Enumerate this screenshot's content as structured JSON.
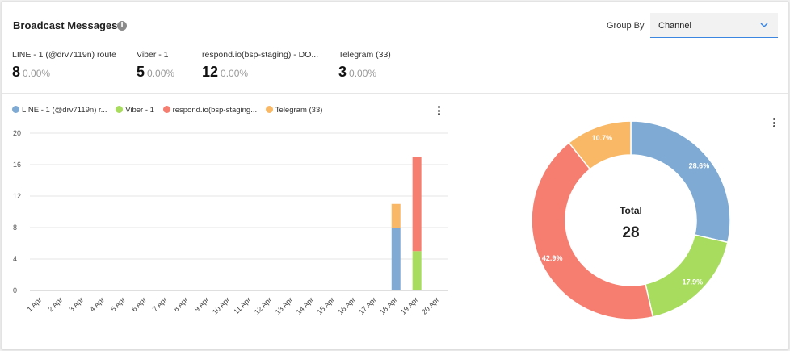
{
  "header": {
    "title": "Broadcast Messages",
    "info_icon": "i",
    "group_by_label": "Group By",
    "group_by_value": "Channel"
  },
  "stats": [
    {
      "label": "LINE - 1 (@drv7119n) route",
      "count": "8",
      "percent": "0.00%"
    },
    {
      "label": "Viber - 1",
      "count": "5",
      "percent": "0.00%"
    },
    {
      "label": "respond.io(bsp-staging) - DO...",
      "count": "12",
      "percent": "0.00%"
    },
    {
      "label": "Telegram (33)",
      "count": "3",
      "percent": "0.00%"
    }
  ],
  "legend": [
    {
      "label": "LINE - 1 (@drv7119n) r...",
      "color": "#7eaad3"
    },
    {
      "label": "Viber - 1",
      "color": "#a8dc5e"
    },
    {
      "label": "respond.io(bsp-staging...",
      "color": "#f67e70"
    },
    {
      "label": "Telegram (33)",
      "color": "#f9b865"
    }
  ],
  "chart_data": [
    {
      "type": "bar",
      "stacked": true,
      "categories": [
        "1 Apr",
        "2 Apr",
        "3 Apr",
        "4 Apr",
        "5 Apr",
        "6 Apr",
        "7 Apr",
        "8 Apr",
        "9 Apr",
        "10 Apr",
        "11 Apr",
        "12 Apr",
        "13 Apr",
        "14 Apr",
        "15 Apr",
        "16 Apr",
        "17 Apr",
        "18 Apr",
        "19 Apr",
        "20 Apr"
      ],
      "series": [
        {
          "name": "LINE - 1 (@drv7119n) route",
          "color": "#7eaad3",
          "values": [
            0,
            0,
            0,
            0,
            0,
            0,
            0,
            0,
            0,
            0,
            0,
            0,
            0,
            0,
            0,
            0,
            0,
            8,
            0,
            0
          ]
        },
        {
          "name": "Viber - 1",
          "color": "#a8dc5e",
          "values": [
            0,
            0,
            0,
            0,
            0,
            0,
            0,
            0,
            0,
            0,
            0,
            0,
            0,
            0,
            0,
            0,
            0,
            0,
            5,
            0
          ]
        },
        {
          "name": "respond.io(bsp-staging) - DO...",
          "color": "#f67e70",
          "values": [
            0,
            0,
            0,
            0,
            0,
            0,
            0,
            0,
            0,
            0,
            0,
            0,
            0,
            0,
            0,
            0,
            0,
            0,
            12,
            0
          ]
        },
        {
          "name": "Telegram (33)",
          "color": "#f9b865",
          "values": [
            0,
            0,
            0,
            0,
            0,
            0,
            0,
            0,
            0,
            0,
            0,
            0,
            0,
            0,
            0,
            0,
            0,
            3,
            0,
            0
          ]
        }
      ],
      "yticks": [
        0,
        4,
        8,
        12,
        16,
        20
      ],
      "ylim": [
        0,
        20
      ],
      "grid": true,
      "legend_position": "top-left"
    },
    {
      "type": "pie",
      "donut": true,
      "center_label": "Total",
      "center_value": "28",
      "slices": [
        {
          "value": 8,
          "label": "28.6%",
          "color": "#7eaad3"
        },
        {
          "value": 5,
          "label": "17.9%",
          "color": "#a8dc5e"
        },
        {
          "value": 12,
          "label": "42.9%",
          "color": "#f67e70"
        },
        {
          "value": 3,
          "label": "10.7%",
          "color": "#f9b865"
        }
      ]
    }
  ]
}
